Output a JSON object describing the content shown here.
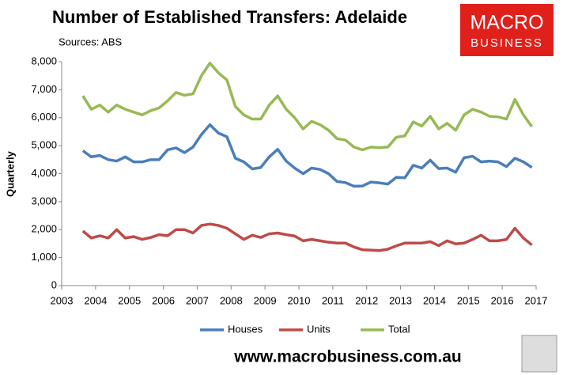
{
  "chart_data": {
    "type": "line",
    "title": "Number of Established Transfers: Adelaide",
    "subtitle": "Sources: ABS",
    "y_label": "Quarterly",
    "logo": [
      "MACRO",
      "BUSINESS"
    ],
    "footer": "www.macrobusiness.com.au",
    "x": [
      2003.625,
      2003.875,
      2004.125,
      2004.375,
      2004.625,
      2004.875,
      2005.125,
      2005.375,
      2005.625,
      2005.875,
      2006.125,
      2006.375,
      2006.625,
      2006.875,
      2007.125,
      2007.375,
      2007.625,
      2007.875,
      2008.125,
      2008.375,
      2008.625,
      2008.875,
      2009.125,
      2009.375,
      2009.625,
      2009.875,
      2010.125,
      2010.375,
      2010.625,
      2010.875,
      2011.125,
      2011.375,
      2011.625,
      2011.875,
      2012.125,
      2012.375,
      2012.625,
      2012.875,
      2013.125,
      2013.375,
      2013.625,
      2013.875,
      2014.125,
      2014.375,
      2014.625,
      2014.875,
      2015.125,
      2015.375,
      2015.625,
      2015.875,
      2016.125,
      2016.375,
      2016.625,
      2016.875
    ],
    "series": [
      {
        "name": "Houses",
        "color": "#4a7ebb",
        "values": [
          4820,
          4600,
          4650,
          4500,
          4450,
          4600,
          4420,
          4420,
          4500,
          4500,
          4850,
          4920,
          4750,
          4950,
          5400,
          5750,
          5450,
          5320,
          4550,
          4420,
          4170,
          4220,
          4600,
          4870,
          4450,
          4200,
          4000,
          4200,
          4150,
          4000,
          3720,
          3680,
          3550,
          3560,
          3700,
          3670,
          3630,
          3870,
          3850,
          4300,
          4200,
          4480,
          4180,
          4200,
          4050,
          4570,
          4620,
          4420,
          4450,
          4420,
          4250,
          4550,
          4420,
          4220
        ]
      },
      {
        "name": "Units",
        "color": "#be4b48",
        "values": [
          1950,
          1700,
          1780,
          1700,
          2000,
          1700,
          1750,
          1650,
          1720,
          1820,
          1780,
          2000,
          2000,
          1880,
          2150,
          2200,
          2150,
          2050,
          1850,
          1650,
          1800,
          1720,
          1850,
          1880,
          1820,
          1770,
          1600,
          1650,
          1600,
          1550,
          1520,
          1520,
          1380,
          1280,
          1270,
          1250,
          1300,
          1420,
          1520,
          1520,
          1520,
          1570,
          1430,
          1600,
          1490,
          1520,
          1650,
          1800,
          1600,
          1600,
          1650,
          2050,
          1700,
          1450
        ]
      },
      {
        "name": "Total",
        "color": "#98b954",
        "values": [
          6780,
          6300,
          6450,
          6200,
          6450,
          6300,
          6200,
          6100,
          6250,
          6350,
          6600,
          6900,
          6800,
          6850,
          7500,
          7950,
          7600,
          7350,
          6400,
          6100,
          5950,
          5950,
          6450,
          6780,
          6300,
          6000,
          5600,
          5870,
          5750,
          5550,
          5250,
          5200,
          4950,
          4850,
          4950,
          4930,
          4950,
          5300,
          5350,
          5850,
          5700,
          6050,
          5600,
          5800,
          5550,
          6100,
          6300,
          6200,
          6050,
          6030,
          5950,
          6650,
          6100,
          5680
        ]
      }
    ],
    "xlim": [
      2003,
      2017
    ],
    "xticks": [
      2003,
      2004,
      2005,
      2006,
      2007,
      2008,
      2009,
      2010,
      2011,
      2012,
      2013,
      2014,
      2015,
      2016,
      2017
    ],
    "ylim": [
      0,
      8000
    ],
    "yticks": [
      0,
      {
        "value": 1000,
        "label": "1,000"
      },
      {
        "value": 2000,
        "label": "2,000"
      },
      {
        "value": 3000,
        "label": "3,000"
      },
      {
        "value": 4000,
        "label": "4,000"
      },
      {
        "value": 5000,
        "label": "5,000"
      },
      {
        "value": 6000,
        "label": "6,000"
      },
      {
        "value": 7000,
        "label": "7,000"
      },
      {
        "value": 8000,
        "label": "8,000"
      }
    ],
    "grid": false,
    "legend": "bottom"
  }
}
